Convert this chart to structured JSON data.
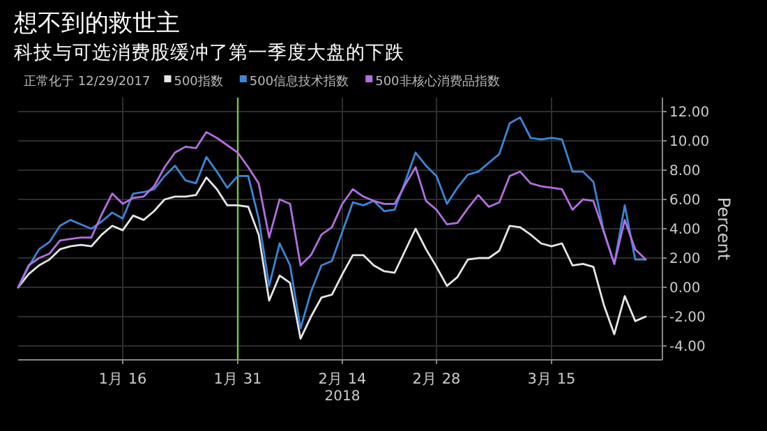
{
  "chart_data": {
    "type": "line",
    "title": "想不到的救世主",
    "subtitle": "科技与可选消费股缓冲了第一季度大盘的下跌",
    "ylabel": "Percent",
    "annotations": [
      "正常化于 12/29/2017",
      "2018"
    ],
    "categories": [
      null,
      null,
      null,
      null,
      null,
      null,
      null,
      null,
      null,
      null,
      "1月 16",
      null,
      null,
      null,
      null,
      null,
      null,
      null,
      null,
      null,
      null,
      "1月 31",
      null,
      null,
      null,
      null,
      null,
      null,
      null,
      null,
      null,
      "2月 14",
      null,
      null,
      null,
      null,
      null,
      null,
      null,
      null,
      "2月 28",
      null,
      null,
      null,
      null,
      null,
      null,
      null,
      null,
      null,
      null,
      "3月 15",
      null,
      null,
      null,
      null,
      null,
      null,
      null,
      null,
      null
    ],
    "series": [
      {
        "name": "500指数",
        "color": "#e6e6e6",
        "values": [
          0,
          0.9,
          1.5,
          1.9,
          2.6,
          2.8,
          2.9,
          2.8,
          3.6,
          4.2,
          3.9,
          4.9,
          4.6,
          5.2,
          6.0,
          6.2,
          6.2,
          6.3,
          7.5,
          6.7,
          5.6,
          5.6,
          5.5,
          3.6,
          -0.9,
          0.8,
          0.3,
          -3.5,
          -2.0,
          -0.7,
          -0.5,
          0.9,
          2.2,
          2.2,
          1.5,
          1.1,
          1.0,
          2.5,
          4.0,
          2.6,
          1.4,
          0.1,
          0.7,
          1.9,
          2.0,
          2.0,
          2.5,
          4.2,
          4.1,
          3.6,
          3.0,
          2.8,
          3.0,
          1.5,
          1.6,
          1.4,
          -1.2,
          -3.2,
          -0.6,
          -2.3,
          -2.0
        ]
      },
      {
        "name": "500信息技术指数",
        "color": "#3c86d6",
        "values": [
          0,
          1.4,
          2.6,
          3.1,
          4.2,
          4.6,
          4.3,
          4.0,
          4.5,
          5.1,
          4.7,
          6.4,
          6.5,
          6.7,
          7.6,
          8.3,
          7.3,
          7.1,
          8.9,
          7.9,
          6.8,
          7.6,
          7.6,
          4.7,
          0.1,
          3.0,
          1.5,
          -2.8,
          -0.3,
          1.5,
          1.8,
          3.8,
          5.8,
          5.6,
          5.9,
          5.2,
          5.3,
          7.2,
          9.2,
          8.3,
          7.6,
          5.7,
          6.8,
          7.7,
          7.9,
          8.5,
          9.1,
          11.2,
          11.6,
          10.2,
          10.1,
          10.2,
          10.1,
          7.9,
          7.9,
          7.2,
          3.8,
          1.6,
          5.6,
          1.9,
          1.9
        ]
      },
      {
        "name": "500非核心消费品指数",
        "color": "#b36fe0",
        "values": [
          0,
          1.5,
          2.0,
          2.3,
          3.2,
          3.3,
          3.4,
          3.4,
          5.0,
          6.4,
          5.7,
          6.1,
          6.2,
          6.9,
          8.2,
          9.2,
          9.6,
          9.5,
          10.6,
          10.2,
          9.7,
          9.2,
          8.2,
          7.1,
          3.4,
          6.0,
          5.7,
          1.5,
          2.2,
          3.6,
          4.1,
          5.7,
          6.7,
          6.2,
          5.9,
          5.7,
          5.7,
          7.0,
          8.2,
          5.9,
          5.3,
          4.3,
          4.4,
          5.4,
          6.3,
          5.5,
          5.8,
          7.6,
          7.9,
          7.1,
          6.9,
          6.8,
          6.7,
          5.3,
          6.0,
          5.9,
          3.8,
          1.6,
          4.6,
          2.6,
          1.9
        ]
      }
    ],
    "ylim": [
      -4.95,
      12.95
    ],
    "yticks": [
      {
        "value": 12,
        "label": "12.00"
      },
      {
        "value": 10,
        "label": "10.00"
      },
      {
        "value": 8,
        "label": "8.00"
      },
      {
        "value": 6,
        "label": "6.00"
      },
      {
        "value": 4,
        "label": "4.00"
      },
      {
        "value": 2,
        "label": "2.00"
      },
      {
        "value": 0,
        "label": "0.00"
      },
      {
        "value": -2,
        "label": "-2.00"
      },
      {
        "value": -4,
        "label": "-4.00"
      }
    ],
    "ref_lines": [
      {
        "axis": "x",
        "value": "1月 31",
        "label": null,
        "color": "#7ec92c"
      }
    ],
    "grid": true,
    "legend": "top",
    "marker": "none",
    "line_style": "solid"
  }
}
